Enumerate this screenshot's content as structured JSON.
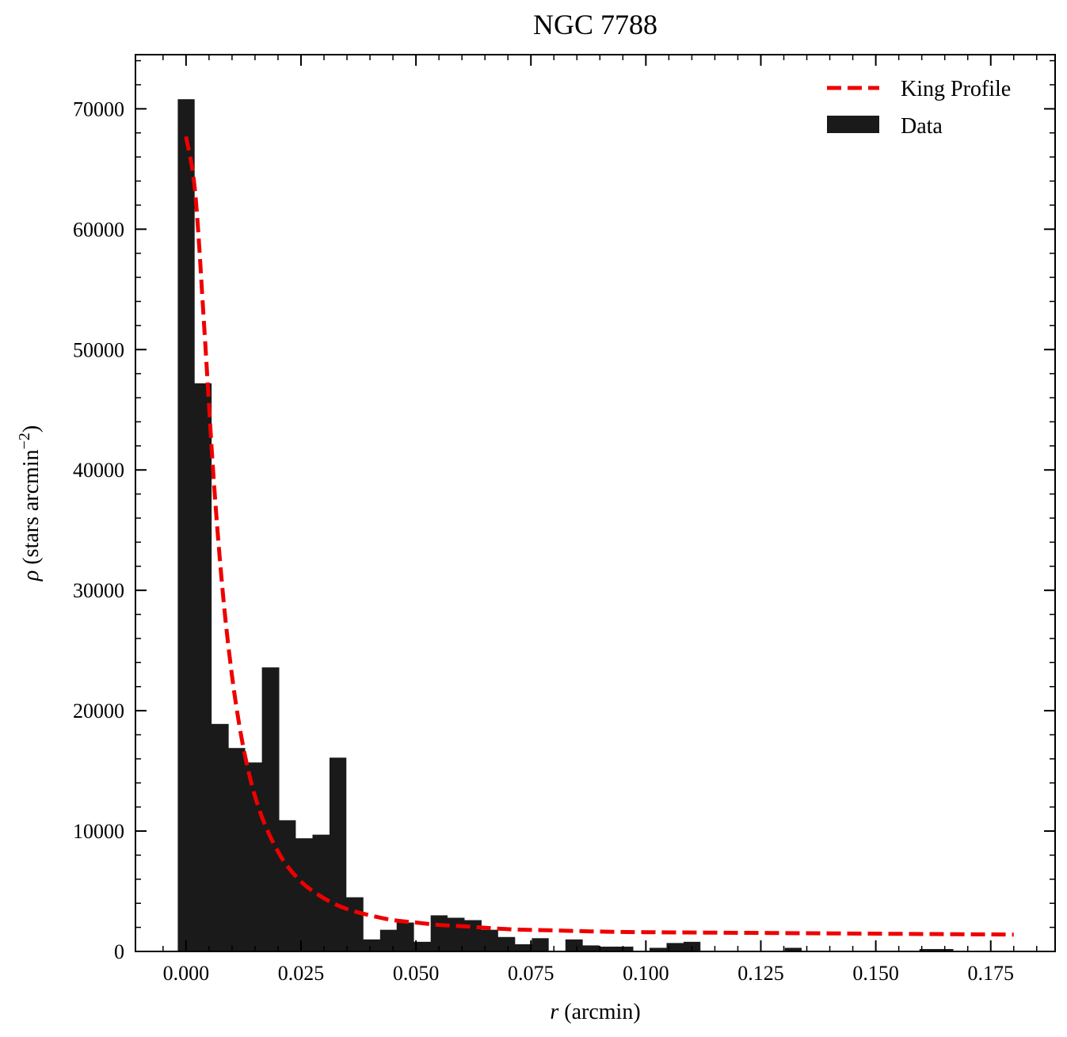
{
  "chart_data": {
    "type": "bar",
    "title": "NGC 7788",
    "xlabel": {
      "symbol": "r",
      "unit": " (arcmin)"
    },
    "ylabel": {
      "symbol": "ρ",
      "text": " (stars arcmin",
      "sup": "−2",
      "close": ")"
    },
    "xlim": [
      -0.011,
      0.189
    ],
    "ylim": [
      0,
      74500
    ],
    "x_ticks": [
      0.0,
      0.025,
      0.05,
      0.075,
      0.1,
      0.125,
      0.15,
      0.175
    ],
    "x_tick_labels": [
      "0.000",
      "0.025",
      "0.050",
      "0.075",
      "0.100",
      "0.125",
      "0.150",
      "0.175"
    ],
    "y_ticks": [
      0,
      10000,
      20000,
      30000,
      40000,
      50000,
      60000,
      70000
    ],
    "y_tick_labels": [
      "0",
      "10000",
      "20000",
      "30000",
      "40000",
      "50000",
      "60000",
      "70000"
    ],
    "legend_position": "top-right",
    "histogram": {
      "name": "Data",
      "color": "#1a1a1a",
      "bin_edges": [
        -0.0018,
        0.0018,
        0.0055,
        0.0092,
        0.0128,
        0.0165,
        0.0202,
        0.0238,
        0.0275,
        0.0312,
        0.0348,
        0.0385,
        0.0422,
        0.0458,
        0.0495,
        0.0532,
        0.0568,
        0.0605,
        0.0642,
        0.0678,
        0.0715,
        0.0752,
        0.0788,
        0.0825,
        0.0862,
        0.0898,
        0.0935,
        0.0972,
        0.1008,
        0.1045,
        0.1082,
        0.1118,
        0.1155,
        0.1192,
        0.1228,
        0.1265,
        0.1302,
        0.1338,
        0.1375,
        0.1412,
        0.1448,
        0.1485,
        0.1522,
        0.1558,
        0.1595,
        0.1632,
        0.1668
      ],
      "values": [
        70800,
        47200,
        18900,
        16900,
        15700,
        23600,
        10900,
        9400,
        9700,
        16100,
        4500,
        1000,
        1800,
        2400,
        800,
        3000,
        2800,
        2600,
        1800,
        1200,
        600,
        1100,
        0,
        1000,
        500,
        400,
        400,
        0,
        300,
        700,
        800,
        0,
        0,
        0,
        0,
        0,
        300,
        0,
        0,
        0,
        0,
        0,
        0,
        0,
        200,
        200
      ]
    },
    "curve": {
      "name": "King Profile",
      "color": "#ee0000",
      "style": "dashed",
      "x": [
        0.0,
        0.002,
        0.004,
        0.006,
        0.008,
        0.01,
        0.012,
        0.014,
        0.016,
        0.018,
        0.02,
        0.022,
        0.025,
        0.028,
        0.032,
        0.036,
        0.04,
        0.045,
        0.05,
        0.055,
        0.06,
        0.07,
        0.08,
        0.09,
        0.1,
        0.12,
        0.14,
        0.16,
        0.18
      ],
      "y": [
        67700,
        63000,
        51600,
        39300,
        29800,
        22900,
        17900,
        14300,
        11700,
        9800,
        8300,
        7100,
        5800,
        4900,
        4000,
        3400,
        3000,
        2600,
        2400,
        2200,
        2100,
        1850,
        1750,
        1650,
        1600,
        1550,
        1500,
        1450,
        1400
      ]
    }
  }
}
